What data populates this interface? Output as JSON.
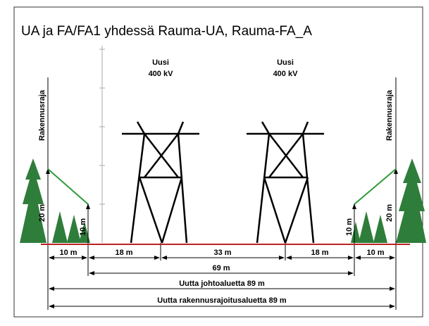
{
  "title": "UA ja FA/FA1 yhdessä Rauma-UA, Rauma-FA_A",
  "towers": [
    {
      "name": "Uusi",
      "voltage": "400 kV"
    },
    {
      "name": "Uusi",
      "voltage": "400 kV"
    }
  ],
  "left": {
    "boundary": "Rakennusraja",
    "tree_height": "20 m",
    "small_height": "10 m"
  },
  "right": {
    "boundary": "Rakennusraja",
    "tree_height": "20 m",
    "small_height": "10 m"
  },
  "dimensions": {
    "row1": [
      "10 m",
      "18  m",
      "33 m",
      "18  m",
      "10 m"
    ],
    "row2": "69 m",
    "row3": "Uutta johtoaluetta 89 m",
    "row4": "Uutta rakennusrajoitusaluetta 89 m"
  }
}
